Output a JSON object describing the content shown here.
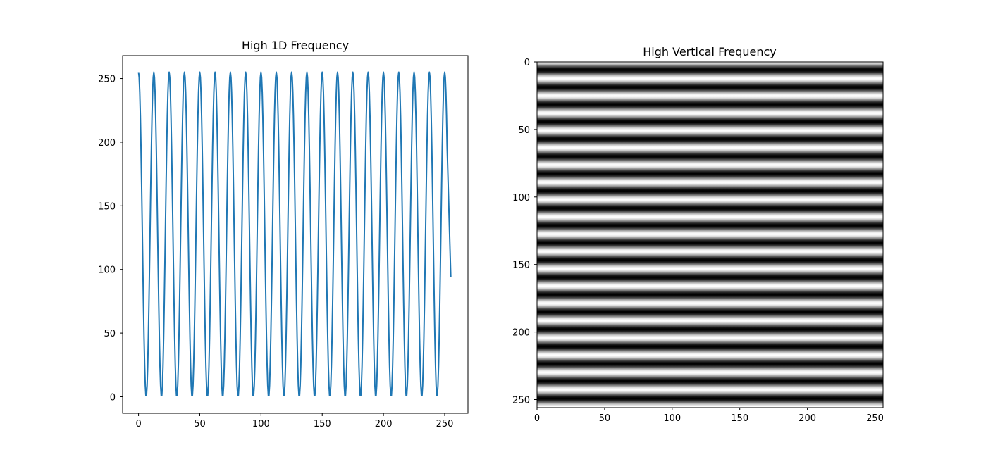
{
  "chart_data": [
    {
      "type": "line",
      "title": "High 1D Frequency",
      "xlabel": "",
      "ylabel": "",
      "xlim": [
        -13,
        269
      ],
      "ylim": [
        -13,
        268
      ],
      "xticks": [
        0,
        50,
        100,
        150,
        200,
        250
      ],
      "yticks": [
        0,
        50,
        100,
        150,
        200,
        250
      ],
      "grid": false,
      "line_color": "#1f77b4",
      "series": [
        {
          "signal": "127.5 + 127.5*cos(2*pi*x/12.5)",
          "x": [
            0,
            6,
            13,
            19,
            25,
            31,
            38,
            44,
            50,
            56,
            63,
            69,
            75,
            81,
            88,
            94,
            100,
            106,
            113,
            119,
            125,
            131,
            138,
            144,
            150,
            156,
            163,
            169,
            175,
            181,
            188,
            194,
            200,
            206,
            213,
            219,
            225,
            231,
            238,
            244,
            250,
            255
          ],
          "y": [
            255,
            1,
            251,
            0,
            254,
            3,
            253,
            0,
            253,
            4,
            254,
            0,
            252,
            2,
            254,
            0,
            251,
            3,
            254,
            0,
            254,
            0,
            253,
            4,
            254,
            0,
            252,
            3,
            252,
            3,
            250,
            2,
            254,
            2,
            252,
            2,
            253,
            4,
            253,
            0,
            252,
            94
          ]
        }
      ]
    },
    {
      "type": "heatmap",
      "title": "High Vertical Frequency",
      "colormap": "gray",
      "xlim": [
        0,
        255
      ],
      "ylim": [
        255,
        0
      ],
      "xticks": [
        0,
        50,
        100,
        150,
        200,
        250
      ],
      "yticks": [
        0,
        50,
        100,
        150,
        200,
        250
      ],
      "pattern": "horizontal stripes",
      "period_rows": 12.8,
      "stripe_count": 20,
      "row_zero_value": "white"
    }
  ]
}
